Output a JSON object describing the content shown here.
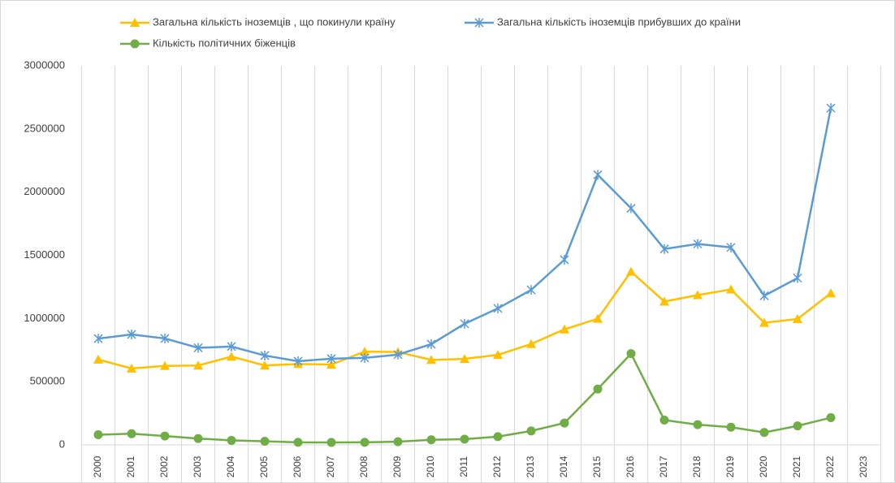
{
  "chart_data": {
    "type": "line",
    "categories": [
      "2000",
      "2001",
      "2002",
      "2003",
      "2004",
      "2005",
      "2006",
      "2007",
      "2008",
      "2009",
      "2010",
      "2011",
      "2012",
      "2013",
      "2014",
      "2015",
      "2016",
      "2017",
      "2018",
      "2019",
      "2020",
      "2021",
      "2022",
      "2023"
    ],
    "series": [
      {
        "name": "Загальна кількість іноземців , що покинули країну",
        "color": "#ffc000",
        "marker": "triangle",
        "values": [
          675000,
          605000,
          625000,
          628000,
          698000,
          628000,
          640000,
          635000,
          738000,
          735000,
          672000,
          680000,
          712000,
          798000,
          914000,
          998000,
          1371000,
          1134000,
          1185000,
          1230000,
          966000,
          996000,
          1200000,
          null
        ]
      },
      {
        "name": "Загальна кількість іноземців прибувших до країни",
        "color": "#5b9bd5",
        "marker": "star",
        "values": [
          841000,
          874000,
          842000,
          768000,
          778000,
          707000,
          662000,
          682000,
          688000,
          714000,
          797000,
          958000,
          1080000,
          1226000,
          1465000,
          2137000,
          1872000,
          1550000,
          1590000,
          1562000,
          1180000,
          1320000,
          2665000,
          null
        ]
      },
      {
        "name": "Кількість політичних біженців",
        "color": "#70ad47",
        "marker": "circle",
        "values": [
          80000,
          88000,
          70000,
          50000,
          35000,
          28000,
          20000,
          19000,
          20000,
          25000,
          40000,
          45000,
          65000,
          110000,
          173000,
          442000,
          722000,
          196000,
          160000,
          140000,
          98000,
          150000,
          215000,
          null
        ]
      }
    ],
    "ylim": [
      0,
      3000000
    ],
    "yticks": [
      0,
      500000,
      1000000,
      1500000,
      2000000,
      2500000,
      3000000
    ],
    "grid": "vertical",
    "legend": "top"
  }
}
